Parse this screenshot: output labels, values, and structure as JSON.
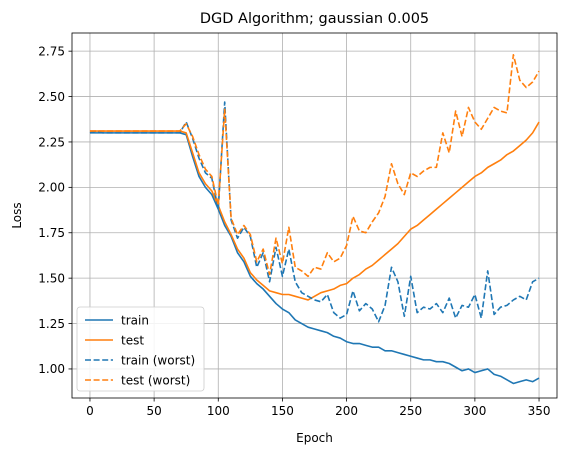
{
  "chart_data": {
    "type": "line",
    "title": "DGD Algorithm; gaussian 0.005",
    "xlabel": "Epoch",
    "ylabel": "Loss",
    "xlim": [
      -14,
      364
    ],
    "ylim": [
      0.84,
      2.85
    ],
    "xticks": [
      0,
      50,
      100,
      150,
      200,
      250,
      300,
      350
    ],
    "yticks": [
      1.0,
      1.25,
      1.5,
      1.75,
      2.0,
      2.25,
      2.5,
      2.75
    ],
    "grid": true,
    "legend_position": "lower-left",
    "series": [
      {
        "name": "train",
        "color": "#1f77b4",
        "dash": "solid",
        "x": [
          0,
          5,
          10,
          15,
          20,
          25,
          30,
          35,
          40,
          45,
          50,
          55,
          60,
          65,
          70,
          75,
          80,
          85,
          90,
          95,
          100,
          105,
          110,
          115,
          120,
          125,
          130,
          135,
          140,
          145,
          150,
          155,
          160,
          165,
          170,
          175,
          180,
          185,
          190,
          195,
          200,
          205,
          210,
          215,
          220,
          225,
          230,
          235,
          240,
          245,
          250,
          255,
          260,
          265,
          270,
          275,
          280,
          285,
          290,
          295,
          300,
          305,
          310,
          315,
          320,
          325,
          330,
          335,
          340,
          345,
          350
        ],
        "y": [
          2.3,
          2.3,
          2.3,
          2.3,
          2.3,
          2.3,
          2.3,
          2.3,
          2.3,
          2.3,
          2.3,
          2.3,
          2.3,
          2.3,
          2.3,
          2.29,
          2.17,
          2.06,
          2.0,
          1.96,
          1.88,
          1.79,
          1.73,
          1.64,
          1.59,
          1.51,
          1.47,
          1.44,
          1.4,
          1.36,
          1.33,
          1.31,
          1.27,
          1.25,
          1.23,
          1.22,
          1.21,
          1.2,
          1.18,
          1.17,
          1.15,
          1.14,
          1.14,
          1.13,
          1.12,
          1.12,
          1.1,
          1.1,
          1.09,
          1.08,
          1.07,
          1.06,
          1.05,
          1.05,
          1.04,
          1.04,
          1.03,
          1.01,
          0.99,
          1.0,
          0.98,
          0.99,
          1.0,
          0.97,
          0.96,
          0.94,
          0.92,
          0.93,
          0.94,
          0.93,
          0.95
        ]
      },
      {
        "name": "test",
        "color": "#ff7f0e",
        "dash": "solid",
        "x": [
          0,
          5,
          10,
          15,
          20,
          25,
          30,
          35,
          40,
          45,
          50,
          55,
          60,
          65,
          70,
          75,
          80,
          85,
          90,
          95,
          100,
          105,
          110,
          115,
          120,
          125,
          130,
          135,
          140,
          145,
          150,
          155,
          160,
          165,
          170,
          175,
          180,
          185,
          190,
          195,
          200,
          205,
          210,
          215,
          220,
          225,
          230,
          235,
          240,
          245,
          250,
          255,
          260,
          265,
          270,
          275,
          280,
          285,
          290,
          295,
          300,
          305,
          310,
          315,
          320,
          325,
          330,
          335,
          340,
          345,
          350
        ],
        "y": [
          2.31,
          2.31,
          2.31,
          2.31,
          2.31,
          2.31,
          2.31,
          2.31,
          2.31,
          2.31,
          2.31,
          2.31,
          2.31,
          2.31,
          2.31,
          2.3,
          2.19,
          2.08,
          2.02,
          1.98,
          1.9,
          1.81,
          1.74,
          1.66,
          1.61,
          1.53,
          1.49,
          1.46,
          1.43,
          1.42,
          1.41,
          1.41,
          1.4,
          1.39,
          1.38,
          1.4,
          1.42,
          1.43,
          1.44,
          1.46,
          1.47,
          1.5,
          1.52,
          1.55,
          1.57,
          1.6,
          1.63,
          1.66,
          1.69,
          1.73,
          1.77,
          1.79,
          1.82,
          1.85,
          1.88,
          1.91,
          1.94,
          1.97,
          2.0,
          2.03,
          2.06,
          2.08,
          2.11,
          2.13,
          2.15,
          2.18,
          2.2,
          2.23,
          2.26,
          2.3,
          2.36
        ]
      },
      {
        "name": "train (worst)",
        "color": "#1f77b4",
        "dash": "dashed",
        "x": [
          0,
          5,
          10,
          15,
          20,
          25,
          30,
          35,
          40,
          45,
          50,
          55,
          60,
          65,
          70,
          75,
          80,
          85,
          90,
          95,
          100,
          105,
          110,
          115,
          120,
          125,
          130,
          135,
          140,
          145,
          150,
          155,
          160,
          165,
          170,
          175,
          180,
          185,
          190,
          195,
          200,
          205,
          210,
          215,
          220,
          225,
          230,
          235,
          240,
          245,
          250,
          255,
          260,
          265,
          270,
          275,
          280,
          285,
          290,
          295,
          300,
          305,
          310,
          315,
          320,
          325,
          330,
          335,
          340,
          345,
          350
        ],
        "y": [
          2.3,
          2.31,
          2.3,
          2.3,
          2.3,
          2.3,
          2.3,
          2.3,
          2.3,
          2.3,
          2.3,
          2.3,
          2.3,
          2.3,
          2.3,
          2.36,
          2.27,
          2.16,
          2.08,
          2.05,
          1.88,
          2.47,
          1.82,
          1.72,
          1.78,
          1.73,
          1.56,
          1.64,
          1.48,
          1.67,
          1.51,
          1.66,
          1.48,
          1.42,
          1.4,
          1.38,
          1.37,
          1.41,
          1.31,
          1.28,
          1.3,
          1.43,
          1.32,
          1.36,
          1.33,
          1.26,
          1.35,
          1.56,
          1.48,
          1.29,
          1.51,
          1.31,
          1.34,
          1.33,
          1.36,
          1.31,
          1.39,
          1.28,
          1.35,
          1.34,
          1.41,
          1.28,
          1.54,
          1.3,
          1.34,
          1.35,
          1.38,
          1.4,
          1.38,
          1.48,
          1.5
        ]
      },
      {
        "name": "test (worst)",
        "color": "#ff7f0e",
        "dash": "dashed",
        "x": [
          0,
          5,
          10,
          15,
          20,
          25,
          30,
          35,
          40,
          45,
          50,
          55,
          60,
          65,
          70,
          75,
          80,
          85,
          90,
          95,
          100,
          105,
          110,
          115,
          120,
          125,
          130,
          135,
          140,
          145,
          150,
          155,
          160,
          165,
          170,
          175,
          180,
          185,
          190,
          195,
          200,
          205,
          210,
          215,
          220,
          225,
          230,
          235,
          240,
          245,
          250,
          255,
          260,
          265,
          270,
          275,
          280,
          285,
          290,
          295,
          300,
          305,
          310,
          315,
          320,
          325,
          330,
          335,
          340,
          345,
          350
        ],
        "y": [
          2.31,
          2.31,
          2.31,
          2.31,
          2.31,
          2.31,
          2.31,
          2.31,
          2.31,
          2.31,
          2.31,
          2.31,
          2.31,
          2.31,
          2.31,
          2.35,
          2.28,
          2.18,
          2.1,
          2.06,
          1.9,
          2.43,
          1.83,
          1.74,
          1.79,
          1.74,
          1.59,
          1.66,
          1.52,
          1.72,
          1.58,
          1.78,
          1.56,
          1.54,
          1.51,
          1.56,
          1.55,
          1.64,
          1.59,
          1.61,
          1.68,
          1.84,
          1.76,
          1.75,
          1.81,
          1.86,
          1.95,
          2.13,
          2.02,
          1.96,
          2.08,
          2.06,
          2.09,
          2.11,
          2.11,
          2.3,
          2.19,
          2.42,
          2.28,
          2.44,
          2.36,
          2.32,
          2.38,
          2.44,
          2.42,
          2.41,
          2.73,
          2.59,
          2.55,
          2.58,
          2.64
        ]
      }
    ]
  }
}
